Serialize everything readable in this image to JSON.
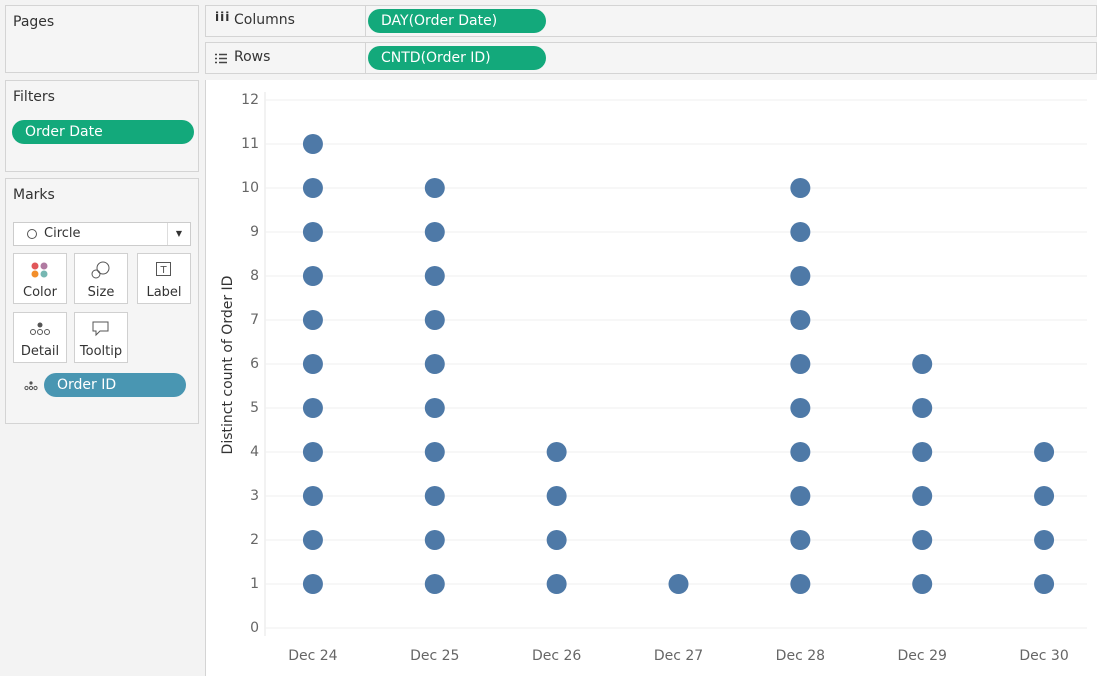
{
  "pages": {
    "title": "Pages"
  },
  "filters": {
    "title": "Filters",
    "pills": [
      "Order Date"
    ]
  },
  "marks": {
    "title": "Marks",
    "mark_type": "Circle",
    "buttons": [
      "Color",
      "Size",
      "Label",
      "Detail",
      "Tooltip"
    ],
    "pills": [
      "Order ID"
    ]
  },
  "shelves": {
    "columns": {
      "label": "Columns",
      "pill": "DAY(Order Date)"
    },
    "rows": {
      "label": "Rows",
      "pill": "CNTD(Order ID)"
    }
  },
  "chart_data": {
    "type": "scatter",
    "ylabel": "Distinct count of Order ID",
    "categories": [
      "Dec 24",
      "Dec 25",
      "Dec 26",
      "Dec 27",
      "Dec 28",
      "Dec 29",
      "Dec 30"
    ],
    "values": [
      [
        1,
        2,
        3,
        4,
        5,
        6,
        7,
        8,
        9,
        10,
        11
      ],
      [
        1,
        2,
        3,
        4,
        5,
        6,
        7,
        8,
        9,
        10
      ],
      [
        1,
        2,
        3,
        4
      ],
      [
        1
      ],
      [
        1,
        2,
        3,
        4,
        5,
        6,
        7,
        8,
        9,
        10
      ],
      [
        1,
        2,
        3,
        4,
        5,
        6
      ],
      [
        1,
        2,
        3,
        4
      ]
    ],
    "color": "#4e79a7",
    "ylim": [
      0,
      12
    ],
    "yticks": [
      0,
      1,
      2,
      3,
      4,
      5,
      6,
      7,
      8,
      9,
      10,
      11,
      12
    ],
    "grid": true
  }
}
